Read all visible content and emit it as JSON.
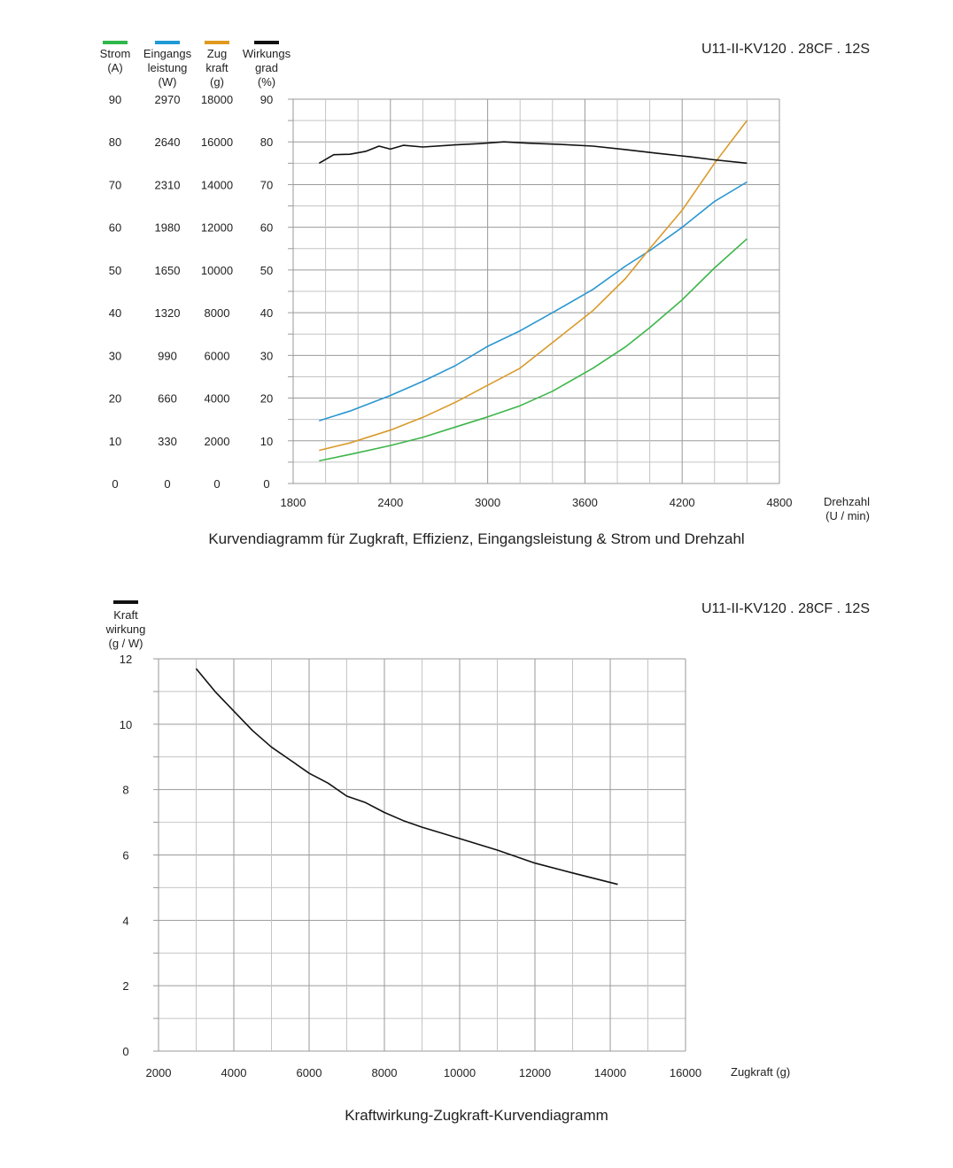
{
  "chart_data": [
    {
      "type": "line",
      "model": "U11-II-KV120 . 28CF . 12S",
      "title": "Kurvendiagramm für Zugkraft, Effizienz, Eingangsleistung &  Strom und Drehzahl",
      "xlabel": "Drehzahl",
      "xunit": "(U / min)",
      "xlim": [
        1800,
        4800
      ],
      "xticks": [
        "1800",
        "2400",
        "3000",
        "3600",
        "4200",
        "4800"
      ],
      "grid": true,
      "legend_position": "top-left",
      "axes": [
        {
          "name1": "Strom",
          "name2": "(A)",
          "name3": "",
          "color": "#2db84a",
          "max": 90,
          "ticks": [
            "0",
            "10",
            "20",
            "30",
            "40",
            "50",
            "60",
            "70",
            "80",
            "90"
          ]
        },
        {
          "name1": "Eingangs",
          "name2": "leistung",
          "name3": "(W)",
          "color": "#1f9ad6",
          "max": 2970,
          "ticks": [
            "0",
            "330",
            "660",
            "990",
            "1320",
            "1650",
            "1980",
            "2310",
            "2640",
            "2970"
          ]
        },
        {
          "name1": "Zug",
          "name2": "kraft",
          "name3": "(g)",
          "color": "#e09a1e",
          "max": 18000,
          "ticks": [
            "0",
            "2000",
            "4000",
            "6000",
            "8000",
            "10000",
            "12000",
            "14000",
            "16000",
            "18000"
          ]
        },
        {
          "name1": "Wirkungs",
          "name2": "grad",
          "name3": "(%)",
          "color": "#111111",
          "max": 90,
          "ticks": [
            "0",
            "10",
            "20",
            "30",
            "40",
            "50",
            "60",
            "70",
            "80",
            "90"
          ]
        }
      ],
      "series": [
        {
          "axis": 0,
          "color": "#3db54a",
          "points": [
            [
              1960,
              5.3
            ],
            [
              2150,
              6.8
            ],
            [
              2400,
              8.9
            ],
            [
              2600,
              10.8
            ],
            [
              2800,
              13.2
            ],
            [
              3000,
              15.6
            ],
            [
              3200,
              18.2
            ],
            [
              3400,
              21.6
            ],
            [
              3650,
              27.0
            ],
            [
              3850,
              32.0
            ],
            [
              4000,
              36.5
            ],
            [
              4200,
              43.0
            ],
            [
              4400,
              50.5
            ],
            [
              4600,
              57.3
            ]
          ]
        },
        {
          "axis": 1,
          "color": "#2a96d0",
          "points": [
            [
              1960,
              485
            ],
            [
              2150,
              560
            ],
            [
              2400,
              680
            ],
            [
              2600,
              790
            ],
            [
              2800,
              910
            ],
            [
              3000,
              1060
            ],
            [
              3200,
              1180
            ],
            [
              3400,
              1320
            ],
            [
              3650,
              1500
            ],
            [
              3850,
              1680
            ],
            [
              4000,
              1800
            ],
            [
              4200,
              1980
            ],
            [
              4400,
              2180
            ],
            [
              4600,
              2330
            ]
          ]
        },
        {
          "axis": 2,
          "color": "#d99a2b",
          "points": [
            [
              1960,
              1550
            ],
            [
              2150,
              1900
            ],
            [
              2400,
              2500
            ],
            [
              2600,
              3100
            ],
            [
              2800,
              3800
            ],
            [
              3000,
              4600
            ],
            [
              3200,
              5400
            ],
            [
              3400,
              6600
            ],
            [
              3650,
              8100
            ],
            [
              3850,
              9600
            ],
            [
              4000,
              11000
            ],
            [
              4200,
              12800
            ],
            [
              4400,
              15000
            ],
            [
              4600,
              17000
            ]
          ]
        },
        {
          "axis": 3,
          "color": "#111111",
          "points": [
            [
              1960,
              75.0
            ],
            [
              2050,
              77.0
            ],
            [
              2150,
              77.1
            ],
            [
              2250,
              77.8
            ],
            [
              2330,
              79.0
            ],
            [
              2400,
              78.3
            ],
            [
              2480,
              79.2
            ],
            [
              2600,
              78.8
            ],
            [
              2800,
              79.3
            ],
            [
              2950,
              79.6
            ],
            [
              3100,
              80.0
            ],
            [
              3250,
              79.7
            ],
            [
              3450,
              79.4
            ],
            [
              3650,
              79.0
            ],
            [
              3850,
              78.2
            ],
            [
              4050,
              77.3
            ],
            [
              4250,
              76.5
            ],
            [
              4400,
              75.8
            ],
            [
              4600,
              75.0
            ]
          ]
        }
      ]
    },
    {
      "type": "line",
      "model": "U11-II-KV120 . 28CF . 12S",
      "title": "Kraftwirkung-Zugkraft-Kurvendiagramm",
      "ylabel_lines": [
        "Kraft",
        "wirkung",
        "(g / W)"
      ],
      "legend_color": "#111111",
      "xlabel": "Zugkraft (g)",
      "xlim": [
        2000,
        16000
      ],
      "ylim": [
        0,
        12
      ],
      "xticks": [
        "2000",
        "4000",
        "6000",
        "8000",
        "10000",
        "12000",
        "14000",
        "16000"
      ],
      "yticks": [
        "0",
        "2",
        "4",
        "6",
        "8",
        "10",
        "12"
      ],
      "grid": true,
      "series": [
        {
          "color": "#111111",
          "points": [
            [
              3000,
              11.7
            ],
            [
              3500,
              11.0
            ],
            [
              4000,
              10.4
            ],
            [
              4500,
              9.8
            ],
            [
              5000,
              9.3
            ],
            [
              5500,
              8.9
            ],
            [
              6000,
              8.5
            ],
            [
              6500,
              8.2
            ],
            [
              7000,
              7.8
            ],
            [
              7500,
              7.6
            ],
            [
              8000,
              7.3
            ],
            [
              8500,
              7.05
            ],
            [
              9000,
              6.85
            ],
            [
              10000,
              6.5
            ],
            [
              11000,
              6.15
            ],
            [
              12000,
              5.75
            ],
            [
              13000,
              5.45
            ],
            [
              14200,
              5.1
            ]
          ]
        }
      ]
    }
  ]
}
